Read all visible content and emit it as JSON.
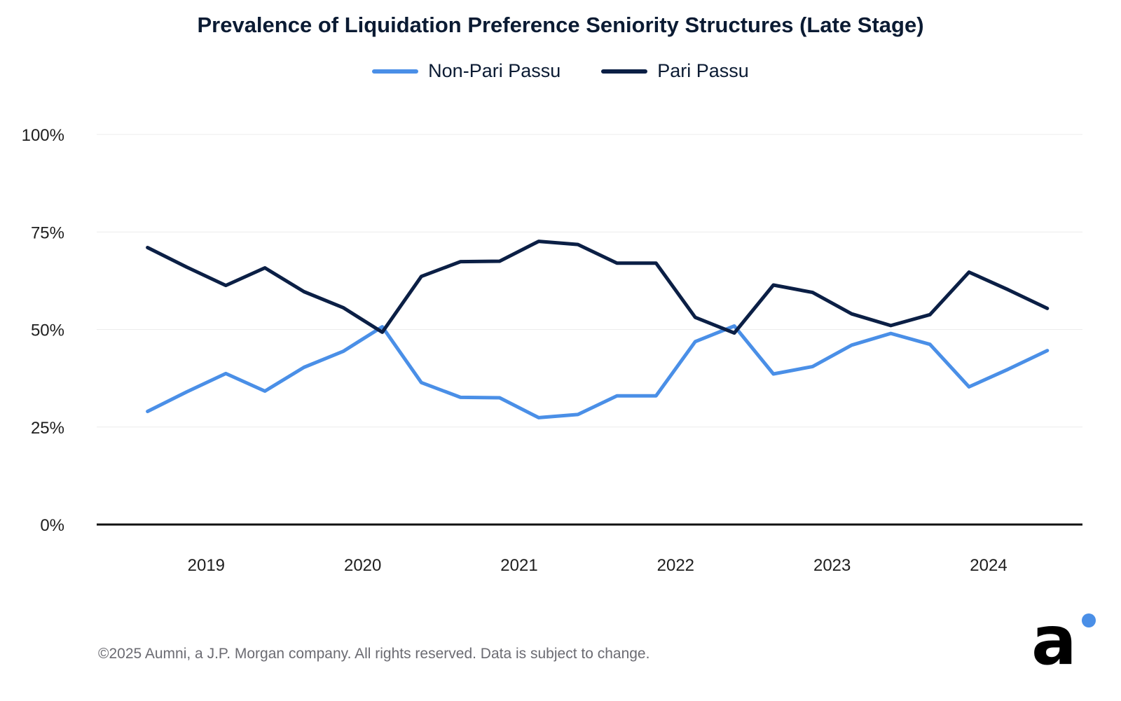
{
  "colors": {
    "non_pari_passu": "#4a8fe7",
    "pari_passu": "#0b1f45",
    "gridline": "#ececec",
    "axis": "#111111",
    "text": "#1e1e1e"
  },
  "footer": {
    "copyright": "©2025 Aumni, a J.P. Morgan company. All rights reserved. Data is subject to change."
  },
  "logo": {
    "letter": "a"
  },
  "chart_data": {
    "type": "line",
    "title": "Prevalence of Liquidation Preference Seniority Structures (Late Stage)",
    "xlabel": "",
    "ylabel": "",
    "ylim": [
      0,
      100
    ],
    "y_ticks": [
      0,
      25,
      50,
      75,
      100
    ],
    "y_tick_labels": [
      "0%",
      "25%",
      "50%",
      "75%",
      "100%"
    ],
    "x_range": [
      2018.3,
      2024.6
    ],
    "x_ticks": [
      2019,
      2020,
      2021,
      2022,
      2023,
      2024
    ],
    "x_tick_labels": [
      "2019",
      "2020",
      "2021",
      "2022",
      "2023",
      "2024"
    ],
    "x": [
      2018.625,
      2018.875,
      2019.125,
      2019.375,
      2019.625,
      2019.875,
      2020.125,
      2020.375,
      2020.625,
      2020.875,
      2021.125,
      2021.375,
      2021.625,
      2021.875,
      2022.125,
      2022.375,
      2022.625,
      2022.875,
      2023.125,
      2023.375,
      2023.625,
      2023.875,
      2024.125,
      2024.375
    ],
    "legend_position": "top-center",
    "series": [
      {
        "name": "Non-Pari Passu",
        "values": [
          29.0,
          34.0,
          38.7,
          34.2,
          40.3,
          44.4,
          50.7,
          36.4,
          32.6,
          32.5,
          27.4,
          28.2,
          33.0,
          33.0,
          46.9,
          50.9,
          38.6,
          40.5,
          46.0,
          49.0,
          46.2,
          35.3,
          39.8,
          44.6
        ]
      },
      {
        "name": "Pari Passu",
        "values": [
          71.0,
          66.0,
          61.3,
          65.8,
          59.7,
          55.6,
          49.3,
          63.6,
          67.4,
          67.5,
          72.6,
          71.8,
          67.0,
          67.0,
          53.1,
          49.1,
          61.4,
          59.5,
          54.0,
          51.0,
          53.8,
          64.7,
          60.2,
          55.4
        ]
      }
    ]
  }
}
